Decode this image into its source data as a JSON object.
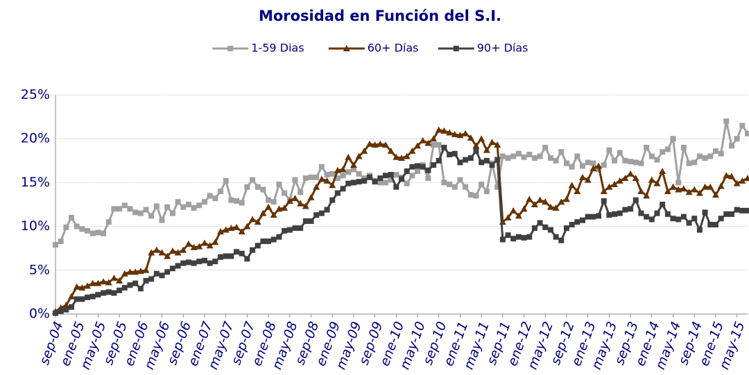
{
  "chart_data": {
    "type": "line",
    "title": "Morosidad en Función del S.I.",
    "categories": [
      "sep-04",
      null,
      null,
      null,
      "ene-05",
      null,
      null,
      null,
      "may-05",
      null,
      null,
      null,
      "sep-05",
      null,
      null,
      null,
      "ene-06",
      null,
      null,
      null,
      "may-06",
      null,
      null,
      null,
      "sep-06",
      null,
      null,
      null,
      "ene-07",
      null,
      null,
      null,
      "may-07",
      null,
      null,
      null,
      "sep-07",
      null,
      null,
      null,
      "ene-08",
      null,
      null,
      null,
      "may-08",
      null,
      null,
      null,
      "sep-08",
      null,
      null,
      null,
      "ene-09",
      null,
      null,
      null,
      "may-09",
      null,
      null,
      null,
      "sep-09",
      null,
      null,
      null,
      "ene-10",
      null,
      null,
      null,
      "may-10",
      null,
      null,
      null,
      "sep-10",
      null,
      null,
      null,
      "ene-11",
      null,
      null,
      null,
      "may-11",
      null,
      null,
      null,
      "sep-11",
      null,
      null,
      null,
      "ene-12",
      null,
      null,
      null,
      "may-12",
      null,
      null,
      null,
      "sep-12",
      null,
      null,
      null,
      "ene-13",
      null,
      null,
      null,
      "may-13",
      null,
      null,
      null,
      "sep-13",
      null,
      null,
      null,
      "ene-14",
      null,
      null,
      null,
      "may-14",
      null,
      null,
      null,
      "sep-14",
      null,
      null,
      null,
      "ene-15",
      null,
      null,
      null,
      "may-15",
      null,
      null
    ],
    "series": [
      {
        "name": "1-59 Dias",
        "color": "#a0a0a0",
        "marker": "square",
        "values": [
          7.9,
          8.3,
          9.9,
          11,
          10,
          9.7,
          9.5,
          9.2,
          9.3,
          9.2,
          10.5,
          12,
          12,
          12.4,
          12,
          11.6,
          11.5,
          11.9,
          11.2,
          12.3,
          10.7,
          12.2,
          11.5,
          12.8,
          12.2,
          12.5,
          12.1,
          12.4,
          12.8,
          13.5,
          13.2,
          14,
          15.2,
          13,
          12.9,
          12.7,
          14.5,
          15.3,
          14.5,
          14.2,
          13,
          12.8,
          14.8,
          13.8,
          13,
          15.3,
          13.9,
          15.5,
          15.6,
          15.6,
          16.8,
          15.9,
          16,
          15.5,
          15.8,
          16.2,
          16.5,
          16,
          15.5,
          15.8,
          15.2,
          15,
          15,
          15.3,
          15.9,
          15.6,
          14.9,
          15.8,
          16.3,
          17,
          15.5,
          19.3,
          19.3,
          15,
          14.8,
          14.5,
          15.3,
          14.5,
          13.6,
          13.5,
          14.8,
          14,
          17.2,
          14.5,
          18,
          17.8,
          18,
          18.3,
          17.9,
          18.2,
          17.8,
          18,
          19,
          17.8,
          17.5,
          18.5,
          17.2,
          16.8,
          18,
          16.9,
          17.3,
          17.2,
          16.5,
          17,
          18.7,
          17.5,
          18.4,
          17.5,
          17.4,
          17.3,
          17.2,
          19,
          18,
          17.6,
          18.5,
          18.8,
          20,
          15,
          19,
          17.2,
          17.3,
          18,
          17.8,
          18,
          18.6,
          18.3,
          22,
          19.2,
          20,
          21.5,
          20.6
        ]
      },
      {
        "name": "60+ Días",
        "color": "#663300",
        "marker": "triangle",
        "values": [
          0.3,
          0.7,
          1.0,
          2.0,
          3.1,
          3.0,
          3.2,
          3.5,
          3.5,
          3.7,
          3.6,
          4.1,
          3.8,
          4.6,
          4.8,
          4.8,
          4.9,
          5.0,
          7.0,
          7.3,
          7.0,
          6.6,
          7.2,
          7.0,
          7.3,
          8.0,
          7.6,
          7.7,
          8.1,
          7.8,
          8.2,
          9.4,
          9.6,
          9.8,
          9.9,
          9.4,
          10.0,
          10.8,
          10.5,
          11.5,
          12.2,
          11.3,
          12.0,
          12.1,
          12.9,
          13.2,
          12.6,
          12.3,
          13.3,
          14.5,
          15.4,
          15.2,
          14.7,
          16.4,
          16.5,
          17.9,
          17.0,
          18.0,
          18.6,
          19.4,
          19.3,
          19.4,
          19.3,
          18.6,
          17.9,
          17.8,
          18.0,
          18.6,
          19.2,
          19.8,
          19.5,
          20.0,
          21.0,
          20.9,
          20.7,
          20.5,
          20.4,
          20.6,
          20.1,
          19.2,
          20.0,
          18.7,
          19.6,
          19.3,
          10.5,
          11.0,
          11.8,
          11.2,
          12.0,
          13.1,
          12.5,
          13.0,
          12.8,
          12.2,
          12.1,
          12.8,
          13.1,
          14.7,
          14.0,
          15.6,
          15.3,
          16.6,
          16.9,
          14.0,
          14.5,
          14.8,
          15.2,
          15.5,
          16.0,
          15.5,
          14.0,
          13.5,
          15.3,
          14.9,
          16.3,
          14.0,
          14.5,
          14.2,
          14.3,
          13.9,
          14.2,
          13.8,
          14.5,
          14.5,
          13.6,
          14.6,
          15.8,
          15.7,
          14.9,
          15.2,
          15.5
        ]
      },
      {
        "name": "90+ Días",
        "color": "#404040",
        "marker": "square",
        "values": [
          0.1,
          0.3,
          0.5,
          0.8,
          1.7,
          1.7,
          1.9,
          2.0,
          2.2,
          2.4,
          2.5,
          2.4,
          2.7,
          3.0,
          3.3,
          3.5,
          2.9,
          3.8,
          4.0,
          4.6,
          4.4,
          4.8,
          5.2,
          5.5,
          5.8,
          5.9,
          5.8,
          6.0,
          6.1,
          5.8,
          6.0,
          6.5,
          6.6,
          6.6,
          7.1,
          6.9,
          6.3,
          7.3,
          7.8,
          8.3,
          8.3,
          8.5,
          8.8,
          9.5,
          9.6,
          9.8,
          9.8,
          10.6,
          10.6,
          11.3,
          11.5,
          11.9,
          13.0,
          13.8,
          14.3,
          14.9,
          15.0,
          15.1,
          15.2,
          15.6,
          15.1,
          15.5,
          15.8,
          15.9,
          14.5,
          15.4,
          16.3,
          16.8,
          16.9,
          16.8,
          16.4,
          17.0,
          17.5,
          19.0,
          18.2,
          18.3,
          17.3,
          17.6,
          17.8,
          18.6,
          17.3,
          17.5,
          17.0,
          17.6,
          8.5,
          9.0,
          8.6,
          8.8,
          8.7,
          8.8,
          9.8,
          10.4,
          9.9,
          9.6,
          8.8,
          8.4,
          9.8,
          10.2,
          10.5,
          10.7,
          11.1,
          11.1,
          11.2,
          12.9,
          11.3,
          11.4,
          11.5,
          11.9,
          12.0,
          13.0,
          11.5,
          11.1,
          10.8,
          11.5,
          12.5,
          11.4,
          10.9,
          10.8,
          11.1,
          10.4,
          10.9,
          9.6,
          11.6,
          10.2,
          10.2,
          10.9,
          11.4,
          11.4,
          11.9,
          11.8,
          11.8
        ]
      }
    ],
    "ylim": [
      0,
      25
    ],
    "yticks": [
      {
        "value": 0,
        "label": "0%"
      },
      {
        "value": 5,
        "label": "5%"
      },
      {
        "value": 10,
        "label": "10%"
      },
      {
        "value": 15,
        "label": "15%"
      },
      {
        "value": 20,
        "label": "20%"
      },
      {
        "value": 25,
        "label": "25%"
      }
    ],
    "grid": true,
    "legend": "top"
  }
}
